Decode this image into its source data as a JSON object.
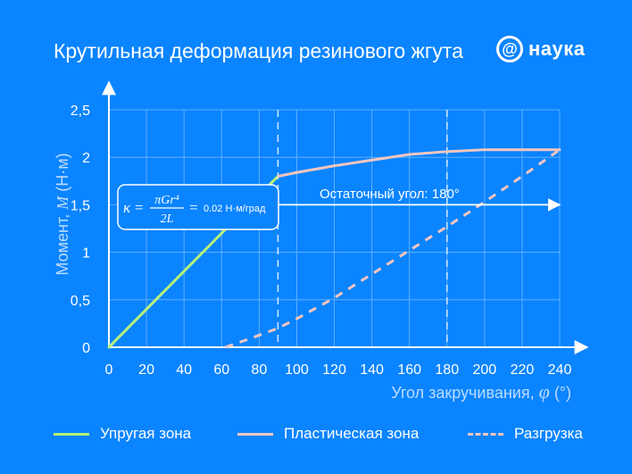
{
  "title": "Крутильная деформация резинового жгута",
  "brand": {
    "text": "наука",
    "icon": "at-sign-icon"
  },
  "chart_data": {
    "type": "line",
    "title": "Крутильная деформация резинового жгута",
    "xlabel": "Угол закручивания, φ (°)",
    "xlabel_text": "Угол закручивания,",
    "xlabel_symbol": "φ",
    "xlabel_unit": "(°)",
    "ylabel": "Момент, M (Н·м)",
    "ylabel_text": "Момент,",
    "ylabel_symbol": "M",
    "ylabel_unit": "(Н·м)",
    "xlim": [
      0,
      240
    ],
    "ylim": [
      0,
      2.5
    ],
    "x_ticks": [
      0,
      20,
      40,
      60,
      80,
      100,
      120,
      140,
      160,
      180,
      200,
      220,
      240
    ],
    "x_tick_labels": [
      "0",
      "20",
      "40",
      "60",
      "80",
      "100",
      "120",
      "140",
      "160",
      "180",
      "200",
      "220",
      "240"
    ],
    "y_ticks": [
      0,
      0.5,
      1,
      1.5,
      2,
      2.5
    ],
    "y_tick_labels": [
      "0",
      "0,5",
      "1",
      "1,5",
      "2",
      "2,5"
    ],
    "grid": true,
    "legend_position": "bottom",
    "series": [
      {
        "name": "Упругая зона",
        "style": "solid",
        "color": "#b7f27a",
        "x": [
          0,
          90
        ],
        "y": [
          0,
          1.8
        ]
      },
      {
        "name": "Пластическая зона",
        "style": "solid",
        "color": "#f6c6c0",
        "x": [
          90,
          100,
          120,
          140,
          160,
          180,
          200,
          220,
          240
        ],
        "y": [
          1.8,
          1.84,
          1.91,
          1.97,
          2.03,
          2.06,
          2.08,
          2.08,
          2.08
        ]
      },
      {
        "name": "Разгрузка",
        "style": "dashed",
        "color": "#f6c6c0",
        "x": [
          62,
          75,
          90,
          100,
          120,
          140,
          160,
          180,
          200,
          220,
          240
        ],
        "y": [
          0,
          0.09,
          0.2,
          0.3,
          0.52,
          0.77,
          1.02,
          1.27,
          1.53,
          1.8,
          2.08
        ]
      }
    ],
    "vlines": [
      90,
      180
    ],
    "annotation_residual": {
      "text": "Остаточный угол: 180°",
      "x_start": 90,
      "x_end": 240,
      "y": 1.5
    },
    "formula": {
      "lhs": "κ",
      "eq": "=",
      "numerator": "πGr⁴",
      "denominator": "2L",
      "eq2": "=",
      "value": "0.02 Н·м/град"
    }
  },
  "legend": [
    {
      "label": "Упругая зона",
      "style": "solid",
      "color": "#b7f27a"
    },
    {
      "label": "Пластическая зона",
      "style": "solid",
      "color": "#f6c6c0"
    },
    {
      "label": "Разгрузка",
      "style": "dashed",
      "color": "#f6c6c0"
    }
  ]
}
